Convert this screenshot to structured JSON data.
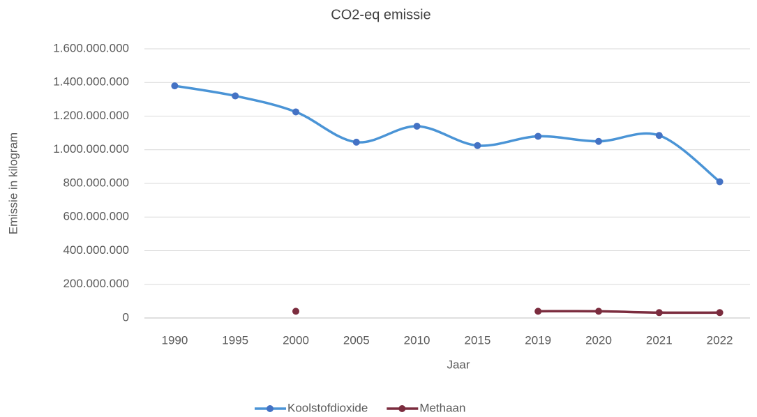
{
  "chart_data": {
    "type": "line",
    "title": "CO2-eq emissie",
    "x_label": "Jaar",
    "y_label": "Emissie in kilogram",
    "categories": [
      "1990",
      "1995",
      "2000",
      "2005",
      "2010",
      "2015",
      "2019",
      "2020",
      "2021",
      "2022"
    ],
    "series": [
      {
        "name": "Koolstofdioxide",
        "color": "#4a94d6",
        "values": [
          1380000000,
          1320000000,
          1225000000,
          1045000000,
          1140000000,
          1025000000,
          1080000000,
          1050000000,
          1085000000,
          810000000
        ]
      },
      {
        "name": "Methaan",
        "color": "#7b2c3e",
        "values": [
          null,
          null,
          40000000,
          null,
          null,
          null,
          40000000,
          40000000,
          32000000,
          32000000
        ]
      }
    ],
    "ylim": [
      0,
      1600000000
    ],
    "yticks": [
      0,
      {
        "value": 200000000,
        "label": "200.000.000"
      },
      {
        "value": 400000000,
        "label": "400.000.000"
      },
      {
        "value": 600000000,
        "label": "600.000.000"
      },
      {
        "value": 800000000,
        "label": "800.000.000"
      },
      {
        "value": 1000000000,
        "label": "1.000.000.000"
      },
      {
        "value": 1200000000,
        "label": "1.200.000.000"
      },
      {
        "value": 1400000000,
        "label": "1.400.000.000"
      },
      {
        "value": 1600000000,
        "label": "1.600.000.000"
      }
    ],
    "grid": true,
    "smooth": true,
    "legend": "bottom"
  }
}
